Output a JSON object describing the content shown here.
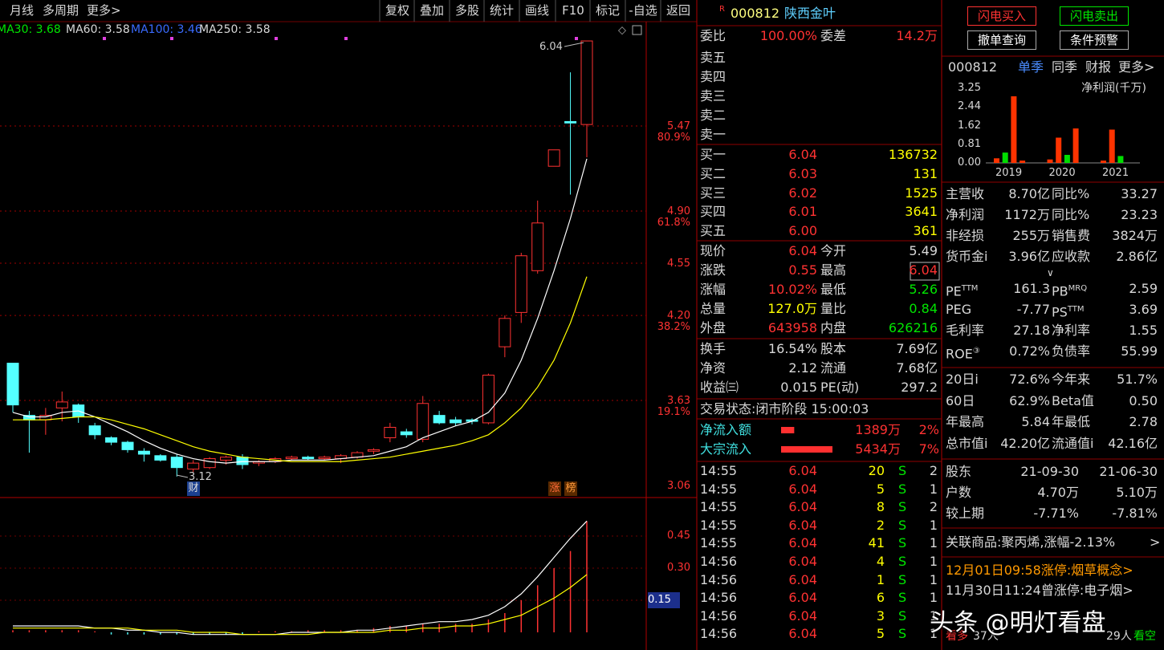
{
  "toolbar": {
    "left": [
      "月线",
      "多周期",
      "更多>"
    ],
    "buttons": [
      "复权",
      "叠加",
      "多股",
      "统计",
      "画线",
      "F10",
      "标记",
      "-自选",
      "返回"
    ]
  },
  "kline": {
    "ma_legend": [
      "MA30: 3.68",
      "MA60: 3.58",
      "MA100: 3.46",
      "MA250: 3.58"
    ],
    "price_ticks": [
      5.47,
      {
        "value": 4.9,
        "label": "4.90"
      },
      4.55,
      {
        "value": 4.2,
        "label": "4.20"
      },
      3.63,
      3.06
    ],
    "fib_labels": [
      {
        "value": 80.9,
        "label": "80.9%"
      },
      {
        "value": 61.8,
        "label": "61.8%"
      },
      {
        "value": 38.2,
        "label": "38.2%"
      },
      {
        "value": 19.1,
        "label": "19.1%"
      }
    ],
    "high_label": 6.04,
    "low_label": 3.12,
    "badges": [
      "财",
      "涨",
      "榜"
    ],
    "candles": [
      [
        3.88,
        3.88,
        3.55,
        3.6
      ],
      [
        3.53,
        3.56,
        3.28,
        3.5
      ],
      [
        3.5,
        3.58,
        3.4,
        3.53
      ],
      [
        3.58,
        3.69,
        3.49,
        3.62
      ],
      [
        3.6,
        3.61,
        3.48,
        3.52
      ],
      [
        3.46,
        3.48,
        3.37,
        3.4
      ],
      [
        3.38,
        3.39,
        3.33,
        3.35
      ],
      [
        3.35,
        3.36,
        3.28,
        3.3
      ],
      [
        3.29,
        3.31,
        3.22,
        3.27
      ],
      [
        3.26,
        3.27,
        3.22,
        3.23
      ],
      [
        3.25,
        3.27,
        3.12,
        3.18
      ],
      [
        3.17,
        3.23,
        3.15,
        3.21
      ],
      [
        3.18,
        3.25,
        3.17,
        3.24
      ],
      [
        3.23,
        3.26,
        3.2,
        3.25
      ],
      [
        3.25,
        3.27,
        3.17,
        3.2
      ],
      [
        3.21,
        3.23,
        3.19,
        3.22
      ],
      [
        3.22,
        3.25,
        3.21,
        3.24
      ],
      [
        3.24,
        3.26,
        3.23,
        3.25
      ],
      [
        3.25,
        3.26,
        3.23,
        3.24
      ],
      [
        3.24,
        3.26,
        3.23,
        3.25
      ],
      [
        3.24,
        3.27,
        3.21,
        3.26
      ],
      [
        3.25,
        3.29,
        3.24,
        3.28
      ],
      [
        3.29,
        3.31,
        3.27,
        3.3
      ],
      [
        3.38,
        3.48,
        3.35,
        3.45
      ],
      [
        3.42,
        3.44,
        3.38,
        3.4
      ],
      [
        3.37,
        3.66,
        3.35,
        3.61
      ],
      [
        3.53,
        3.56,
        3.47,
        3.48
      ],
      [
        3.5,
        3.52,
        3.46,
        3.48
      ],
      [
        3.5,
        3.51,
        3.47,
        3.49
      ],
      [
        3.48,
        3.81,
        3.47,
        3.8
      ],
      [
        3.99,
        4.2,
        3.92,
        4.18
      ],
      [
        4.22,
        4.62,
        4.15,
        4.6
      ],
      [
        4.5,
        4.97,
        4.48,
        4.82
      ],
      [
        5.2,
        5.31,
        5.2,
        5.31
      ],
      [
        5.5,
        5.83,
        5.01,
        5.49
      ],
      [
        5.48,
        6.04,
        5.26,
        6.04
      ]
    ],
    "ma_lines": [
      {
        "color": "#ffffff",
        "values": [
          3.55,
          3.52,
          3.52,
          3.55,
          3.56,
          3.52,
          3.47,
          3.42,
          3.36,
          3.31,
          3.27,
          3.24,
          3.22,
          3.21,
          3.22,
          3.22,
          3.22,
          3.23,
          3.23,
          3.23,
          3.24,
          3.25,
          3.26,
          3.29,
          3.32,
          3.38,
          3.42,
          3.46,
          3.49,
          3.55,
          3.68,
          3.9,
          4.18,
          4.5,
          4.85,
          5.25
        ]
      },
      {
        "color": "#ffff00",
        "values": [
          3.5,
          3.5,
          3.5,
          3.51,
          3.52,
          3.52,
          3.5,
          3.47,
          3.44,
          3.4,
          3.36,
          3.32,
          3.29,
          3.27,
          3.25,
          3.24,
          3.23,
          3.22,
          3.22,
          3.22,
          3.22,
          3.23,
          3.24,
          3.25,
          3.27,
          3.29,
          3.31,
          3.33,
          3.36,
          3.4,
          3.48,
          3.58,
          3.72,
          3.9,
          4.15,
          4.46
        ]
      }
    ]
  },
  "indicator": {
    "ticks": [
      0.45,
      {
        "value": 0.3,
        "label": "0.30"
      },
      0.15
    ],
    "bars": [
      0.01,
      0.01,
      0.01,
      0.01,
      0.01,
      0.005,
      -0.01,
      -0.01,
      -0.01,
      -0.01,
      -0.01,
      -0.01,
      -0.01,
      -0.01,
      -0.01,
      0.005,
      0.005,
      0.005,
      0.01,
      0.01,
      0.01,
      0.01,
      0.02,
      0.03,
      0.03,
      0.04,
      0.04,
      0.04,
      0.04,
      0.06,
      0.09,
      0.15,
      0.22,
      0.3,
      0.38,
      0.52
    ],
    "lines": [
      {
        "color": "#ffffff",
        "values": [
          0.03,
          0.03,
          0.03,
          0.03,
          0.03,
          0.02,
          0.02,
          0.01,
          0.01,
          0.0,
          0.0,
          -0.01,
          -0.01,
          -0.01,
          -0.01,
          -0.01,
          -0.01,
          0.0,
          0.0,
          0.0,
          0.0,
          0.01,
          0.01,
          0.02,
          0.03,
          0.04,
          0.05,
          0.05,
          0.06,
          0.08,
          0.12,
          0.18,
          0.26,
          0.35,
          0.44,
          0.52
        ]
      },
      {
        "color": "#ffff00",
        "values": [
          0.02,
          0.02,
          0.02,
          0.02,
          0.02,
          0.02,
          0.02,
          0.02,
          0.01,
          0.01,
          0.01,
          0.0,
          0.0,
          0.0,
          -0.01,
          -0.01,
          -0.01,
          -0.01,
          -0.01,
          0.0,
          0.0,
          0.0,
          0.0,
          0.01,
          0.01,
          0.02,
          0.02,
          0.03,
          0.03,
          0.04,
          0.06,
          0.08,
          0.12,
          0.16,
          0.21,
          0.27
        ]
      }
    ]
  },
  "quote": {
    "flag": "R",
    "code": "000812",
    "name": "陕西金叶",
    "weibi": [
      "委比",
      "100.00%",
      "委差",
      "14.2万"
    ],
    "sells": [
      "卖五",
      "卖四",
      "卖三",
      "卖二",
      "卖一"
    ],
    "buys": [
      [
        "买一",
        "6.04",
        "136732"
      ],
      [
        "买二",
        "6.03",
        "131"
      ],
      [
        "买三",
        "6.02",
        "1525"
      ],
      [
        "买四",
        "6.01",
        "3641"
      ],
      [
        "买五",
        "6.00",
        "361"
      ]
    ],
    "stats": [
      [
        "现价",
        "6.04",
        "今开",
        "5.49"
      ],
      [
        "涨跌",
        "0.55",
        "最高",
        "6.04"
      ],
      [
        "涨幅",
        "10.02%",
        "最低",
        "5.26"
      ],
      [
        "总量",
        "127.0万",
        "量比",
        "0.84"
      ],
      [
        "外盘",
        "643958",
        "内盘",
        "626216"
      ]
    ],
    "basics": [
      [
        "换手",
        "16.54%",
        "股本",
        "7.69亿"
      ],
      [
        "净资",
        "2.12",
        "流通",
        "7.68亿"
      ],
      [
        "收益㈢",
        "0.015",
        "PE(动)",
        "297.2"
      ]
    ],
    "status": "交易状态:闭市阶段 15:00:03",
    "flows": [
      {
        "label": "净流入额",
        "value": 1389,
        "value_label": "1389万",
        "pct": "2%"
      },
      {
        "label": "大宗流入",
        "value": 5434,
        "value_label": "5434万",
        "pct": "7%"
      }
    ],
    "ticks": [
      [
        "14:55",
        "6.04",
        "20",
        "S",
        "2"
      ],
      [
        "14:55",
        "6.04",
        "5",
        "S",
        "1"
      ],
      [
        "14:55",
        "6.04",
        "8",
        "S",
        "2"
      ],
      [
        "14:55",
        "6.04",
        "2",
        "S",
        "1"
      ],
      [
        "14:55",
        "6.04",
        "41",
        "S",
        "1"
      ],
      [
        "14:56",
        "6.04",
        "4",
        "S",
        "1"
      ],
      [
        "14:56",
        "6.04",
        "1",
        "S",
        "1"
      ],
      [
        "14:56",
        "6.04",
        "6",
        "S",
        "1"
      ],
      [
        "14:56",
        "6.04",
        "3",
        "S",
        "1"
      ],
      [
        "14:56",
        "6.04",
        "5",
        "S",
        "1"
      ]
    ]
  },
  "side": {
    "buttons": [
      "闪电买入",
      "闪电卖出",
      "撤单查询",
      "条件预警"
    ],
    "code": "000812",
    "tabs": [
      "单季",
      "同季",
      "财报",
      "更多>"
    ],
    "profit_chart": {
      "title": "净利润(千万)",
      "yticks": [
        3.25,
        2.44,
        1.62,
        0.81,
        {
          "value": 0,
          "label": "0.00"
        }
      ],
      "years": [
        "2019",
        "2020",
        "2021"
      ],
      "bars": [
        [
          0.2,
          0.45,
          2.9,
          0.1
        ],
        [
          0.15,
          1.1,
          0.35,
          1.5
        ],
        [
          0.1,
          1.45,
          0.3
        ]
      ],
      "colors": [
        [
          "#ff3300",
          "#00dd00",
          "#ff3300",
          "#ff3300"
        ],
        [
          "#ff3300",
          "#ff3300",
          "#00dd00",
          "#ff3300"
        ],
        [
          "#ff3300",
          "#ff3300",
          "#00dd00"
        ]
      ]
    },
    "finance": [
      [
        "主营收",
        "8.70亿",
        "同比%",
        "33.27"
      ],
      [
        "净利润",
        "1172万",
        "同比%",
        "23.23"
      ],
      [
        "非经损",
        "255万",
        "销售费",
        "3824万"
      ],
      [
        "货币金i",
        "3.96亿",
        "应收款",
        "2.86亿"
      ]
    ],
    "expand": "∨",
    "valuation": [
      {
        "label": "PE",
        "label_sup": "TTM",
        "value": "161.3",
        "label2": "PB",
        "label2_sup": "MRQ",
        "value2": "2.59"
      },
      {
        "label": "PEG",
        "value": "-7.77",
        "label2": "PS",
        "label2_sup": "TTM",
        "value2": "3.69"
      },
      {
        "label": "毛利率",
        "value": "27.18",
        "label2": "净利率",
        "value2": "1.55"
      },
      {
        "label": "ROE",
        "label_sup": "③",
        "value": "0.72%",
        "label2": "负债率",
        "value2": "55.99"
      }
    ],
    "market": [
      [
        "20日i",
        "72.6%",
        "今年来",
        "51.7%"
      ],
      [
        "60日",
        "62.9%",
        "Beta值",
        "0.50"
      ],
      [
        "年最高",
        "5.84",
        "年最低",
        "2.78"
      ],
      [
        "总市值i",
        "42.20亿",
        "流通值i",
        "42.16亿"
      ]
    ],
    "holders": [
      [
        "股东",
        "21-09-30",
        "21-06-30"
      ],
      [
        "户数",
        "4.70万",
        "5.10万"
      ],
      [
        "较上期",
        "-7.71%",
        "-7.81%"
      ]
    ],
    "related": "关联商品:聚丙烯,涨幅-2.13%",
    "related_arrow": ">",
    "news": [
      "12月01日09:58涨停:烟草概念>",
      "11月30日11:24曾涨停:电子烟>"
    ],
    "sentiment": [
      "看多",
      "37人",
      "29人",
      "看空"
    ],
    "watermark": "头条 @明灯看盘"
  }
}
